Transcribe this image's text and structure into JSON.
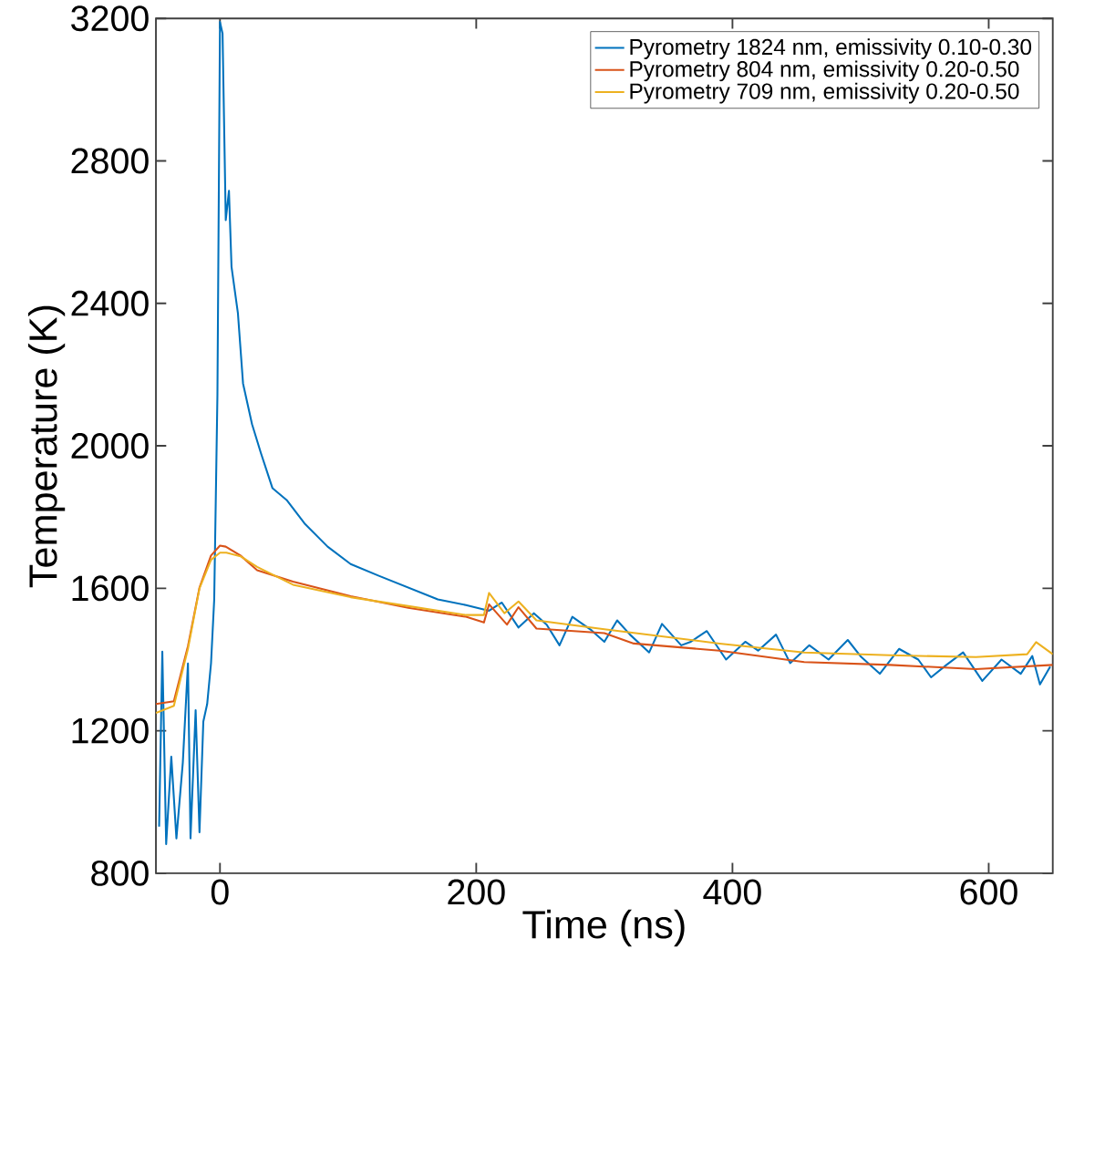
{
  "chart_data": {
    "type": "line",
    "xlabel": "Time (ns)",
    "ylabel": "Temperature (K)",
    "xlim": [
      -50,
      650
    ],
    "ylim": [
      800,
      3200
    ],
    "xticks": [
      0,
      200,
      400,
      600
    ],
    "yticks": [
      800,
      1200,
      1600,
      2000,
      2400,
      2800,
      3200
    ],
    "grid": false,
    "legend": "top right",
    "marker": "none",
    "line_style": "solid",
    "series": [
      {
        "name": "Pyrometry 1824 nm, emissivity 0.10-0.30",
        "color": "#0072bd",
        "x": [
          -47.5,
          -45,
          -42,
          -38,
          -34,
          -29,
          -25,
          -23,
          -19,
          -16,
          -13,
          -10,
          -7,
          -4.5,
          -2,
          0,
          2,
          4.5,
          7,
          9,
          14,
          18,
          25,
          32,
          41,
          52,
          66,
          84,
          102,
          124,
          147,
          170,
          192,
          210,
          220,
          233,
          245,
          255,
          265,
          275,
          290,
          300,
          310,
          320,
          335,
          345,
          360,
          367,
          380,
          395,
          410,
          420,
          434,
          445,
          460,
          475,
          490,
          500,
          515,
          530,
          545,
          555,
          567,
          580,
          595,
          610,
          625,
          634,
          640,
          648
        ],
        "values": [
          931,
          1422,
          882,
          1127,
          898,
          1111,
          1389,
          898,
          1258,
          915,
          1226,
          1275,
          1389,
          1569,
          2142,
          3190,
          3158,
          2634,
          2716,
          2503,
          2372,
          2175,
          2061,
          1979,
          1881,
          1848,
          1782,
          1717,
          1668,
          1635,
          1602,
          1569,
          1553,
          1537,
          1560,
          1490,
          1530,
          1498,
          1440,
          1520,
          1482,
          1450,
          1510,
          1470,
          1420,
          1500,
          1440,
          1449,
          1480,
          1400,
          1450,
          1425,
          1470,
          1390,
          1440,
          1400,
          1455,
          1409,
          1360,
          1430,
          1400,
          1350,
          1385,
          1420,
          1340,
          1400,
          1360,
          1410,
          1330,
          1380
        ]
      },
      {
        "name": "Pyrometry   804 nm, emissivity 0.20-0.50",
        "color": "#d95319",
        "x": [
          -50,
          -36,
          -25,
          -16,
          -7,
          0,
          4.5,
          16,
          29,
          57,
          102,
          147,
          192,
          206,
          210,
          224,
          233,
          247,
          300,
          323,
          390,
          456,
          523,
          590,
          650
        ],
        "values": [
          1275,
          1283,
          1438,
          1602,
          1692,
          1720,
          1717,
          1692,
          1651,
          1619,
          1578,
          1545,
          1520,
          1504,
          1555,
          1498,
          1547,
          1487,
          1474,
          1445,
          1425,
          1393,
          1385,
          1373,
          1385
        ]
      },
      {
        "name": "Pyrometry   709 nm, emissivity 0.20-0.50",
        "color": "#edb120",
        "x": [
          -50,
          -36,
          -25,
          -16,
          -7,
          0,
          5,
          16,
          29,
          57,
          102,
          147,
          192,
          206,
          210,
          222,
          233,
          247,
          300,
          323,
          390,
          456,
          523,
          590,
          630,
          637,
          650
        ],
        "values": [
          1250,
          1270,
          1430,
          1600,
          1680,
          1700,
          1700,
          1690,
          1660,
          1610,
          1575,
          1550,
          1525,
          1525,
          1587,
          1530,
          1563,
          1510,
          1485,
          1475,
          1445,
          1420,
          1412,
          1407,
          1415,
          1449,
          1415
        ]
      }
    ]
  }
}
